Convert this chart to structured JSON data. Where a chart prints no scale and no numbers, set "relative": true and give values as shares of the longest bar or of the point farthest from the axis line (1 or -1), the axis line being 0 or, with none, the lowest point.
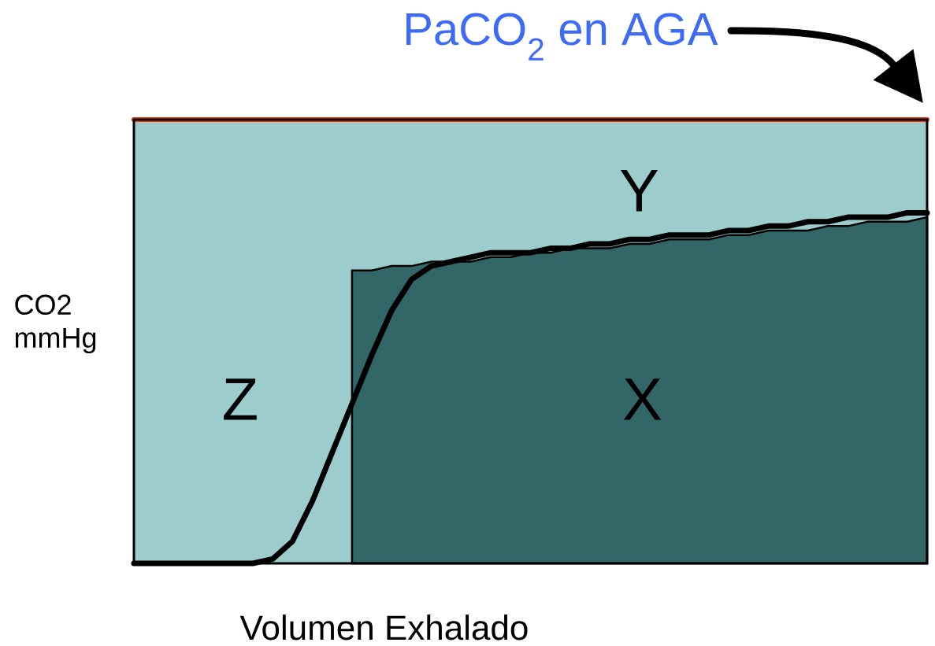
{
  "chart_data": {
    "type": "line",
    "relative": true,
    "title": "PaCO$_{2}$ en AGA",
    "xlabel": "Volumen Exhalado",
    "ylabel": "CO2 mmHg",
    "categories": [
      null,
      null,
      null,
      null,
      null,
      null,
      null,
      null,
      null,
      null,
      null,
      null,
      null,
      null,
      null,
      null,
      null,
      null,
      null,
      null,
      null,
      null,
      null,
      null,
      null,
      null,
      null,
      null,
      null,
      null,
      null,
      null,
      null,
      null,
      null,
      null,
      null,
      null,
      null,
      null,
      null
    ],
    "series": [
      {
        "type": "area",
        "color": "#336666",
        "values": [
          null,
          null,
          null,
          null,
          null,
          null,
          null,
          null,
          null,
          null,
          null,
          0.66,
          0.66,
          0.67,
          0.67,
          0.68,
          0.68,
          0.68,
          0.69,
          0.69,
          0.7,
          0.7,
          0.71,
          0.71,
          0.71,
          0.72,
          0.72,
          0.73,
          0.73,
          0.73,
          0.74,
          0.74,
          0.75,
          0.75,
          0.75,
          0.76,
          0.76,
          0.77,
          0.77,
          0.77,
          0.78
        ]
      },
      {
        "color": "#ff3300",
        "values": [
          1,
          1,
          1,
          1,
          1,
          1,
          1,
          1,
          1,
          1,
          1,
          1,
          1,
          1,
          1,
          1,
          1,
          1,
          1,
          1,
          1,
          1,
          1,
          1,
          1,
          1,
          1,
          1,
          1,
          1,
          1,
          1,
          1,
          1,
          1,
          1,
          1,
          1,
          1,
          1,
          1
        ]
      },
      {
        "color": "#000000",
        "values": [
          0,
          0,
          0,
          0,
          0,
          0,
          0,
          0.01,
          0.05,
          0.14,
          0.25,
          0.36,
          0.47,
          0.57,
          0.64,
          0.67,
          0.68,
          0.69,
          0.7,
          0.7,
          0.7,
          0.71,
          0.71,
          0.72,
          0.72,
          0.73,
          0.73,
          0.74,
          0.74,
          0.74,
          0.75,
          0.75,
          0.76,
          0.76,
          0.77,
          0.77,
          0.78,
          0.78,
          0.78,
          0.79,
          0.79
        ]
      }
    ],
    "annotations": [
      "Z",
      "Y",
      "X"
    ]
  }
}
